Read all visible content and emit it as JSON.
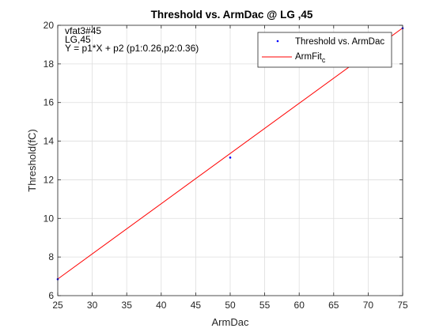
{
  "chart_data": {
    "type": "scatter",
    "title": "Threshold vs. ArmDac @ LG ,45",
    "xlabel": "ArmDac",
    "ylabel": "Threshold(fC)",
    "xlim": [
      25,
      75
    ],
    "ylim": [
      6,
      20
    ],
    "xticks": [
      25,
      30,
      35,
      40,
      45,
      50,
      55,
      60,
      65,
      70,
      75
    ],
    "yticks": [
      6,
      8,
      10,
      12,
      14,
      16,
      18,
      20
    ],
    "grid": true,
    "legend_position": "top-right",
    "annotations": [
      "vfat3#45",
      "LG,45",
      "Y = p1*X + p2 (p1:0.26,p2:0.36)"
    ],
    "series": [
      {
        "name": "Threshold vs. ArmDac",
        "kind": "points",
        "color": "#0000ff",
        "x": [
          25,
          50,
          75
        ],
        "y": [
          6.85,
          13.15,
          19.85
        ]
      },
      {
        "name": "ArmFit_c",
        "legend_main": "ArmFit",
        "legend_sub": "c",
        "kind": "line",
        "color": "#ff0000",
        "x": [
          25,
          75
        ],
        "y": [
          6.86,
          19.86
        ]
      }
    ]
  }
}
